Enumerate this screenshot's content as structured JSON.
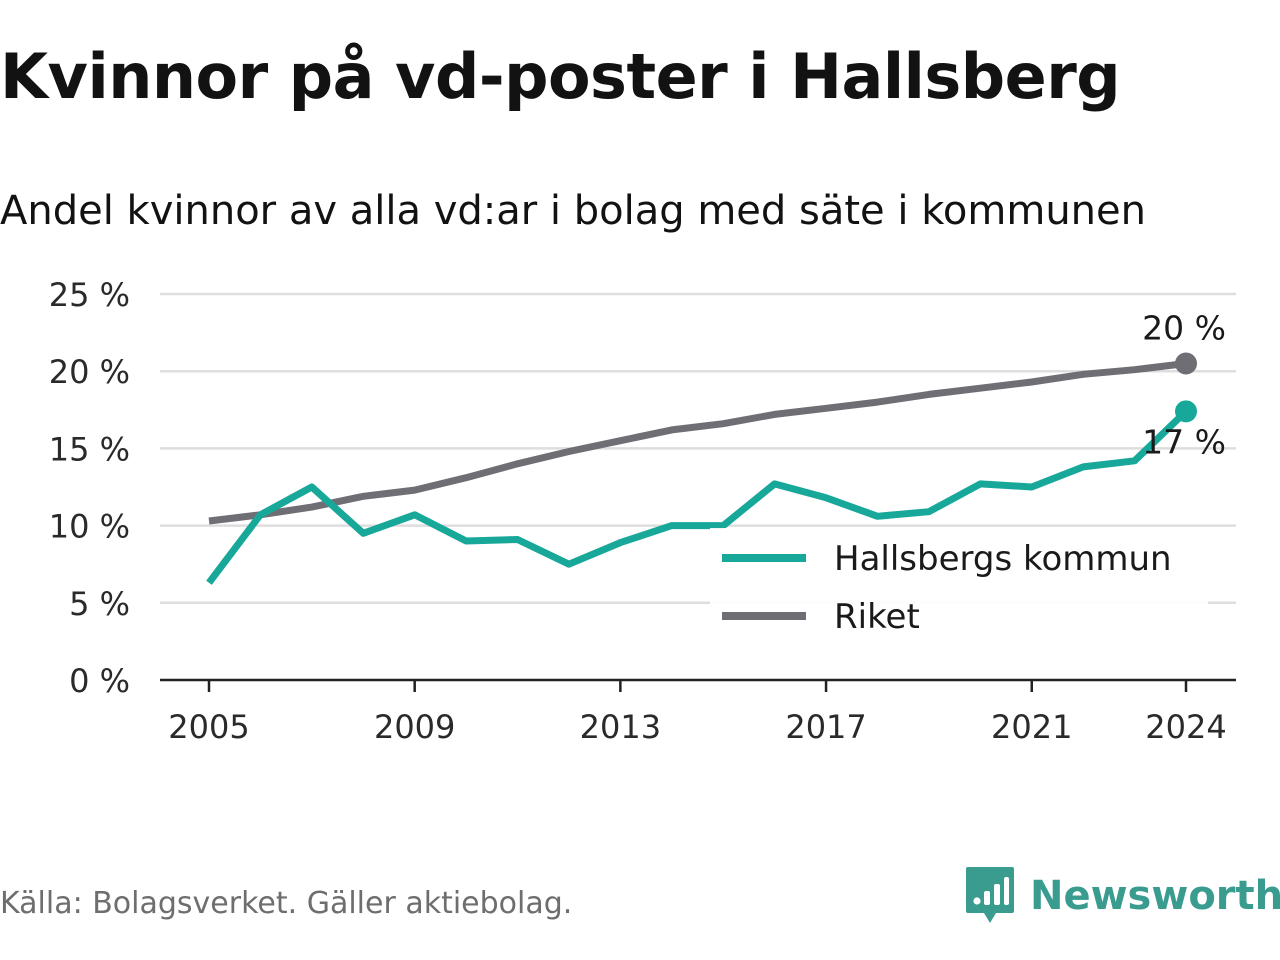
{
  "header": {
    "title": "Kvinnor på vd-poster i Hallsberg",
    "subtitle": "Andel kvinnor av alla vd:ar i bolag med säte i kommunen"
  },
  "footer": {
    "source": "Källa: Bolagsverket. Gäller aktiebolag.",
    "brand": "Newsworthy",
    "brand_icon": "newsworthy-logo-icon"
  },
  "colors": {
    "hallsberg": "#17a89a",
    "riket": "#6f6e75",
    "grid": "#dedede",
    "axis": "#222222",
    "brand": "#3a9b8f"
  },
  "chart_data": {
    "type": "line",
    "title": "Kvinnor på vd-poster i Hallsberg",
    "subtitle": "Andel kvinnor av alla vd:ar i bolag med säte i kommunen",
    "x": [
      2005,
      2006,
      2007,
      2008,
      2009,
      2010,
      2011,
      2012,
      2013,
      2014,
      2015,
      2016,
      2017,
      2018,
      2019,
      2020,
      2021,
      2022,
      2023,
      2024
    ],
    "series": [
      {
        "name": "Hallsbergs kommun",
        "color": "#17a89a",
        "values": [
          6.3,
          10.7,
          12.5,
          9.5,
          10.7,
          9.0,
          9.1,
          7.5,
          8.9,
          10.0,
          10.0,
          12.7,
          11.8,
          10.6,
          10.9,
          12.7,
          12.5,
          13.8,
          14.2,
          17.4
        ],
        "end_label": "17 %"
      },
      {
        "name": "Riket",
        "color": "#6f6e75",
        "values": [
          10.3,
          10.7,
          11.2,
          11.9,
          12.3,
          13.1,
          14.0,
          14.8,
          15.5,
          16.2,
          16.6,
          17.2,
          17.6,
          18.0,
          18.5,
          18.9,
          19.3,
          19.8,
          20.1,
          20.5
        ],
        "end_label": "20 %"
      }
    ],
    "ylim": [
      0,
      25
    ],
    "yticks": [
      0,
      5,
      10,
      15,
      20,
      25
    ],
    "ytick_labels": [
      "0 %",
      "5 %",
      "10 %",
      "15 %",
      "20 %",
      "25 %"
    ],
    "xticks": [
      2005,
      2009,
      2013,
      2017,
      2021,
      2024
    ],
    "xtick_labels": [
      "2005",
      "2009",
      "2013",
      "2017",
      "2021",
      "2024"
    ],
    "xlabel": "",
    "ylabel": "",
    "grid": true,
    "legend": "bottom-right"
  }
}
